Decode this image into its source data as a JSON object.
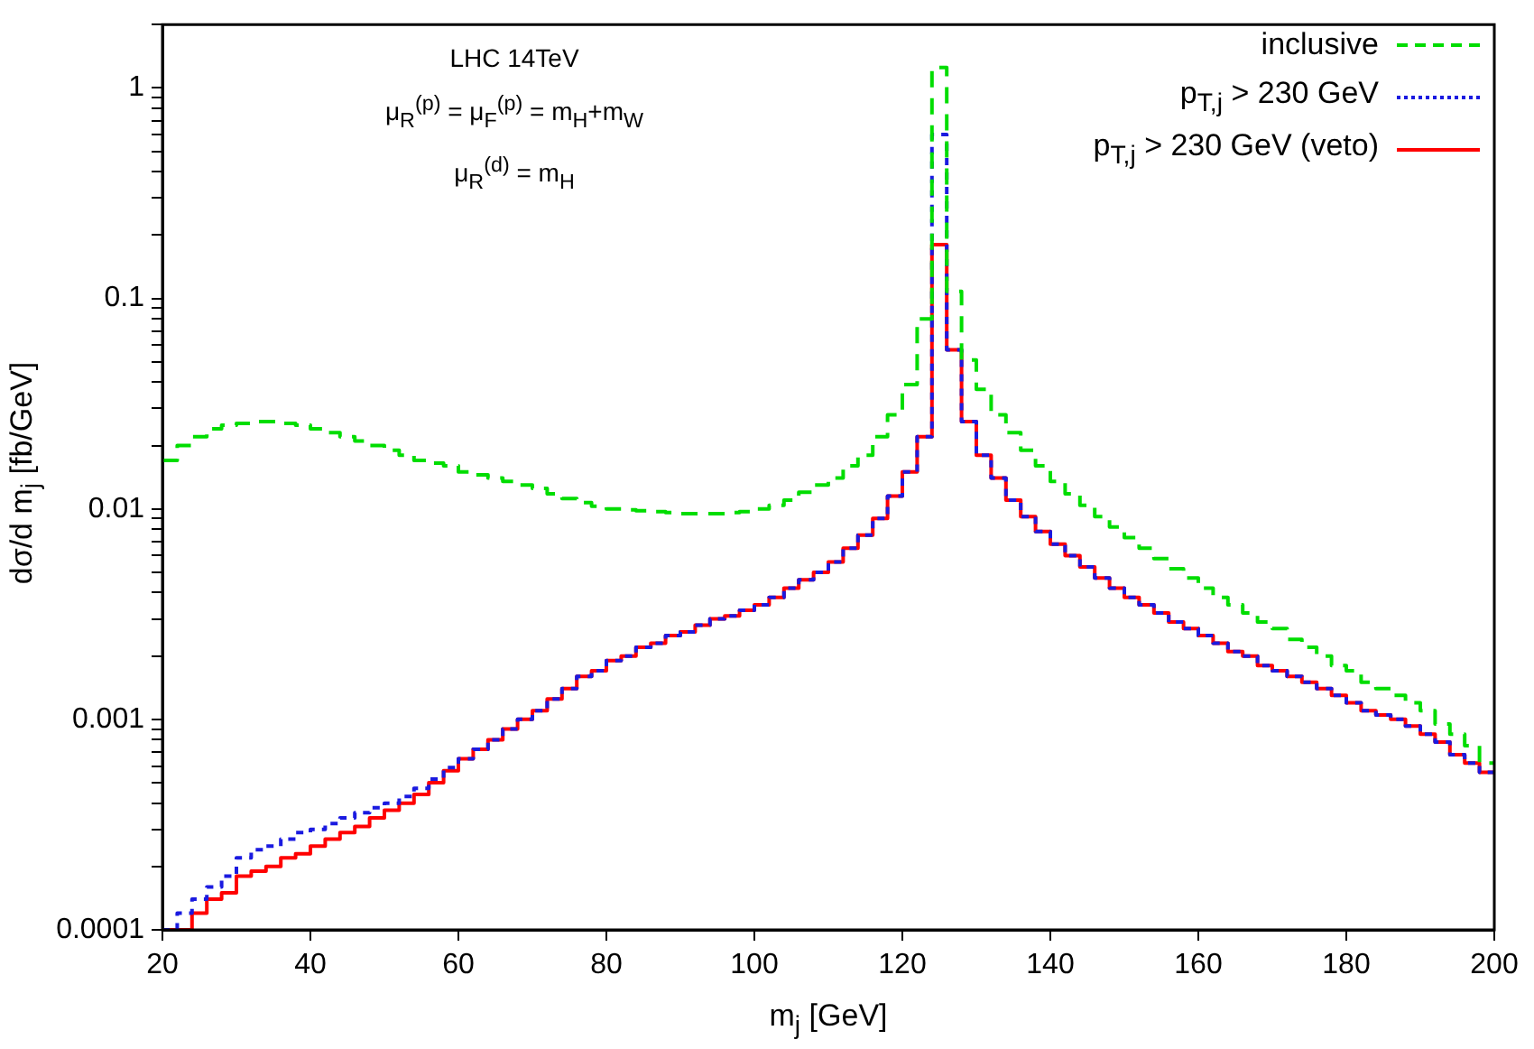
{
  "chart_data": {
    "type": "histogram",
    "xlabel": "m$_{j}$ [GeV]",
    "ylabel": "dσ/d m$_{j}$ [fb/GeV]",
    "annotations": [
      "LHC 14TeV",
      "μ$_{R}$$^{(p)}$ = μ$_{F}$$^{(p)}$ = m$_{H}$+m$_{W}$",
      "μ$_{R}$$^{(d)}$ = m$_{H}$"
    ],
    "bins": [
      20,
      22,
      24,
      26,
      28,
      30,
      32,
      34,
      36,
      38,
      40,
      42,
      44,
      46,
      48,
      50,
      52,
      54,
      56,
      58,
      60,
      62,
      64,
      66,
      68,
      70,
      72,
      74,
      76,
      78,
      80,
      82,
      84,
      86,
      88,
      90,
      92,
      94,
      96,
      98,
      100,
      102,
      104,
      106,
      108,
      110,
      112,
      114,
      116,
      118,
      120,
      122,
      124,
      126,
      128,
      130,
      132,
      134,
      136,
      138,
      140,
      142,
      144,
      146,
      148,
      150,
      152,
      154,
      156,
      158,
      160,
      162,
      164,
      166,
      168,
      170,
      172,
      174,
      176,
      178,
      180,
      182,
      184,
      186,
      188,
      190,
      192,
      194,
      196,
      198,
      200
    ],
    "series": [
      {
        "name": "inclusive",
        "color": "#00dd00",
        "line_style": "dashed",
        "values": [
          0.017,
          0.02,
          0.022,
          0.024,
          0.025,
          0.0255,
          0.026,
          0.026,
          0.0255,
          0.025,
          0.024,
          0.023,
          0.022,
          0.021,
          0.02,
          0.019,
          0.018,
          0.017,
          0.0165,
          0.016,
          0.015,
          0.0145,
          0.014,
          0.0135,
          0.013,
          0.0125,
          0.0118,
          0.0112,
          0.0107,
          0.0103,
          0.01,
          0.0099,
          0.0098,
          0.0097,
          0.0096,
          0.0095,
          0.0095,
          0.0095,
          0.0096,
          0.0097,
          0.01,
          0.0104,
          0.011,
          0.012,
          0.013,
          0.014,
          0.016,
          0.018,
          0.022,
          0.028,
          0.039,
          0.08,
          1.25,
          0.108,
          0.051,
          0.037,
          0.028,
          0.023,
          0.019,
          0.016,
          0.0135,
          0.0118,
          0.0104,
          0.0092,
          0.0082,
          0.0073,
          0.0065,
          0.0058,
          0.0052,
          0.0047,
          0.0042,
          0.0038,
          0.0035,
          0.0032,
          0.0029,
          0.0027,
          0.0024,
          0.0022,
          0.002,
          0.0018,
          0.0017,
          0.0015,
          0.0014,
          0.0013,
          0.0012,
          0.0011,
          0.00095,
          0.00085,
          0.00075,
          0.00062
        ]
      },
      {
        "name": "p$_{T,j}$ > 230 GeV",
        "color": "#1a1ae0",
        "line_style": "dotted",
        "values": [
          0.0001,
          0.00012,
          0.00014,
          0.00016,
          0.00018,
          0.00022,
          0.00024,
          0.00025,
          0.00027,
          0.00029,
          0.0003,
          0.00032,
          0.00034,
          0.00036,
          0.00038,
          0.0004,
          0.00043,
          0.00047,
          0.00052,
          0.00059,
          0.00065,
          0.00072,
          0.0008,
          0.0009,
          0.001,
          0.0011,
          0.00125,
          0.0014,
          0.0016,
          0.0017,
          0.0019,
          0.002,
          0.0022,
          0.0023,
          0.0025,
          0.0026,
          0.0028,
          0.003,
          0.0031,
          0.0033,
          0.0035,
          0.0038,
          0.0042,
          0.0046,
          0.005,
          0.0056,
          0.0065,
          0.0075,
          0.009,
          0.0115,
          0.015,
          0.022,
          0.6,
          0.057,
          0.026,
          0.018,
          0.014,
          0.011,
          0.0092,
          0.0078,
          0.0068,
          0.006,
          0.0053,
          0.0047,
          0.0042,
          0.0038,
          0.0035,
          0.0032,
          0.0029,
          0.0027,
          0.0025,
          0.0023,
          0.0021,
          0.002,
          0.0018,
          0.0017,
          0.0016,
          0.0015,
          0.0014,
          0.0013,
          0.0012,
          0.0011,
          0.00105,
          0.001,
          0.00093,
          0.00085,
          0.00078,
          0.00068,
          0.00062,
          0.00056
        ]
      },
      {
        "name": "p$_{T,j}$ > 230 GeV (veto)",
        "color": "#ff0000",
        "line_style": "solid",
        "values": [
          0.0001,
          0.0001,
          0.00012,
          0.00014,
          0.00015,
          0.00018,
          0.00019,
          0.0002,
          0.00022,
          0.00023,
          0.00025,
          0.00027,
          0.00029,
          0.00031,
          0.00034,
          0.00037,
          0.0004,
          0.00044,
          0.0005,
          0.00057,
          0.00065,
          0.00072,
          0.0008,
          0.0009,
          0.001,
          0.0011,
          0.00125,
          0.0014,
          0.0016,
          0.0017,
          0.0019,
          0.002,
          0.0022,
          0.0023,
          0.0025,
          0.0026,
          0.0028,
          0.003,
          0.0031,
          0.0033,
          0.0035,
          0.0038,
          0.0042,
          0.0046,
          0.005,
          0.0056,
          0.0065,
          0.0075,
          0.009,
          0.0115,
          0.015,
          0.022,
          0.18,
          0.057,
          0.026,
          0.018,
          0.014,
          0.011,
          0.0092,
          0.0078,
          0.0068,
          0.006,
          0.0053,
          0.0047,
          0.0042,
          0.0038,
          0.0035,
          0.0032,
          0.0029,
          0.0027,
          0.0025,
          0.0023,
          0.0021,
          0.002,
          0.0018,
          0.0017,
          0.0016,
          0.0015,
          0.0014,
          0.0013,
          0.0012,
          0.0011,
          0.00105,
          0.001,
          0.00093,
          0.00085,
          0.00078,
          0.00068,
          0.00062,
          0.00056
        ]
      }
    ],
    "xlim": [
      20,
      200
    ],
    "xticks": [
      20,
      40,
      60,
      80,
      100,
      120,
      140,
      160,
      180,
      200
    ],
    "ylim": [
      0.0001,
      2
    ],
    "log": "y",
    "yticks": [
      0.0001,
      {
        "value": 0.0002,
        "label": null
      },
      {
        "value": 0.0003,
        "label": null
      },
      {
        "value": 0.0004,
        "label": null
      },
      {
        "value": 0.0005,
        "label": null
      },
      {
        "value": 0.0006,
        "label": null
      },
      {
        "value": 0.0007,
        "label": null
      },
      {
        "value": 0.0008,
        "label": null
      },
      {
        "value": 0.0009,
        "label": null
      },
      0.001,
      {
        "value": 0.002,
        "label": null
      },
      {
        "value": 0.003,
        "label": null
      },
      {
        "value": 0.004,
        "label": null
      },
      {
        "value": 0.005,
        "label": null
      },
      {
        "value": 0.006,
        "label": null
      },
      {
        "value": 0.007,
        "label": null
      },
      {
        "value": 0.008,
        "label": null
      },
      {
        "value": 0.009,
        "label": null
      },
      0.01,
      {
        "value": 0.02,
        "label": null
      },
      {
        "value": 0.03,
        "label": null
      },
      {
        "value": 0.04,
        "label": null
      },
      {
        "value": 0.05,
        "label": null
      },
      {
        "value": 0.06,
        "label": null
      },
      {
        "value": 0.07,
        "label": null
      },
      {
        "value": 0.08,
        "label": null
      },
      {
        "value": 0.09,
        "label": null
      },
      0.1,
      {
        "value": 0.2,
        "label": null
      },
      {
        "value": 0.3,
        "label": null
      },
      {
        "value": 0.4,
        "label": null
      },
      {
        "value": 0.5,
        "label": null
      },
      {
        "value": 0.6,
        "label": null
      },
      {
        "value": 0.7,
        "label": null
      },
      {
        "value": 0.8,
        "label": null
      },
      {
        "value": 0.9,
        "label": null
      },
      1,
      {
        "value": 2,
        "label": null
      }
    ],
    "grid": false,
    "legend": "top right"
  }
}
